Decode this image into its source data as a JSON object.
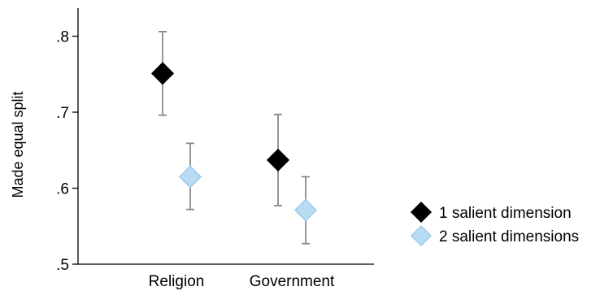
{
  "chart_data": {
    "type": "scatter",
    "title": "",
    "xlabel": "",
    "ylabel": "Made equal split",
    "categories": [
      "Religion",
      "Government"
    ],
    "yticks": [
      ".5",
      ".6",
      ".7",
      ".8"
    ],
    "ytick_values": [
      0.5,
      0.6,
      0.7,
      0.8
    ],
    "ylim": [
      0.5,
      0.835
    ],
    "grid": false,
    "legend_position": "right",
    "series": [
      {
        "name": "1 salient dimension",
        "color": "#000000",
        "marker": "diamond",
        "values": [
          0.751,
          0.637
        ],
        "ci_low": [
          0.696,
          0.577
        ],
        "ci_high": [
          0.806,
          0.697
        ]
      },
      {
        "name": "2 salient dimensions",
        "color": "#b8dcf3",
        "marker": "diamond",
        "values": [
          0.615,
          0.571
        ],
        "ci_low": [
          0.572,
          0.527
        ],
        "ci_high": [
          0.659,
          0.615
        ]
      }
    ]
  }
}
